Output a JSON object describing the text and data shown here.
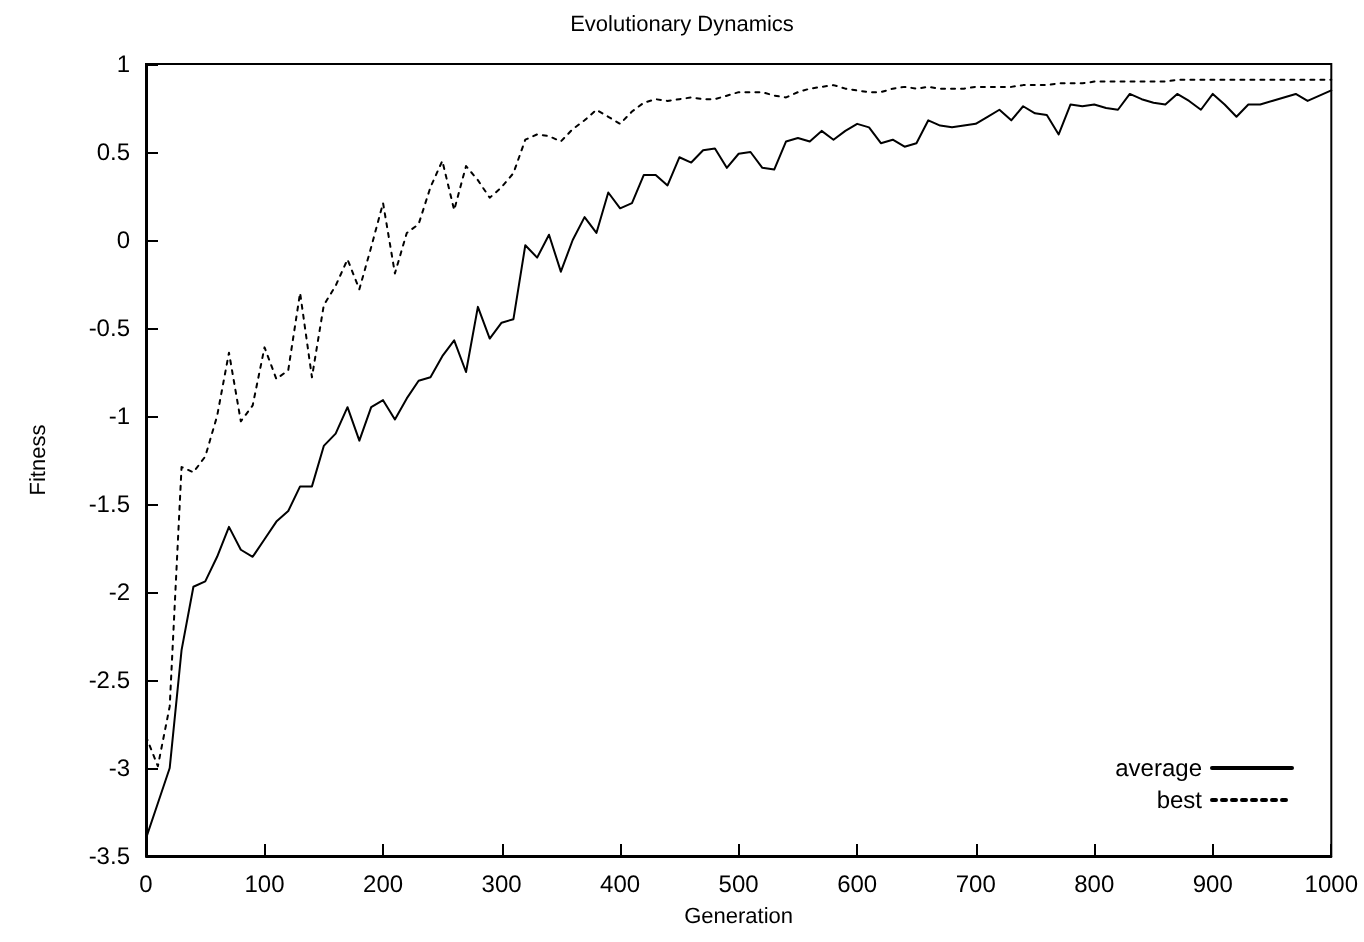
{
  "chart_data": {
    "type": "line",
    "title": "Evolutionary Dynamics",
    "xlabel": "Generation",
    "ylabel": "Fitness",
    "x": [
      0,
      10,
      20,
      30,
      40,
      50,
      60,
      70,
      80,
      90,
      100,
      110,
      120,
      130,
      140,
      150,
      160,
      170,
      180,
      190,
      200,
      210,
      220,
      230,
      240,
      250,
      260,
      270,
      280,
      290,
      300,
      310,
      320,
      330,
      340,
      350,
      360,
      370,
      380,
      390,
      400,
      410,
      420,
      430,
      440,
      450,
      460,
      470,
      480,
      490,
      500,
      510,
      520,
      530,
      540,
      550,
      560,
      570,
      580,
      590,
      600,
      610,
      620,
      630,
      640,
      650,
      660,
      670,
      680,
      690,
      700,
      710,
      720,
      730,
      740,
      750,
      760,
      770,
      780,
      790,
      800,
      810,
      820,
      830,
      840,
      850,
      860,
      870,
      880,
      890,
      900,
      910,
      920,
      930,
      940,
      950,
      960,
      970,
      980,
      990,
      1000
    ],
    "series": [
      {
        "name": "average",
        "color": "#000000",
        "line_style": "solid",
        "values": [
          -3.4,
          -3.2,
          -3.0,
          -2.33,
          -1.97,
          -1.94,
          -1.8,
          -1.63,
          -1.76,
          -1.8,
          -1.7,
          -1.6,
          -1.54,
          -1.4,
          -1.4,
          -1.17,
          -1.1,
          -0.95,
          -1.14,
          -0.95,
          -0.91,
          -1.02,
          -0.9,
          -0.8,
          -0.78,
          -0.66,
          -0.57,
          -0.75,
          -0.38,
          -0.56,
          -0.47,
          -0.45,
          -0.03,
          -0.1,
          0.03,
          -0.18,
          0.0,
          0.13,
          0.04,
          0.27,
          0.18,
          0.21,
          0.37,
          0.37,
          0.31,
          0.47,
          0.44,
          0.51,
          0.52,
          0.41,
          0.49,
          0.5,
          0.41,
          0.4,
          0.56,
          0.58,
          0.56,
          0.62,
          0.57,
          0.62,
          0.66,
          0.64,
          0.55,
          0.57,
          0.53,
          0.55,
          0.68,
          0.65,
          0.64,
          0.65,
          0.66,
          0.7,
          0.74,
          0.68,
          0.76,
          0.72,
          0.71,
          0.6,
          0.77,
          0.76,
          0.77,
          0.75,
          0.74,
          0.83,
          0.8,
          0.78,
          0.77,
          0.83,
          0.79,
          0.74,
          0.83,
          0.77,
          0.7,
          0.77,
          0.77,
          0.79,
          0.81,
          0.83,
          0.79,
          0.82,
          0.85
        ]
      },
      {
        "name": "best",
        "color": "#000000",
        "line_style": "dotted",
        "values": [
          -2.82,
          -2.99,
          -2.65,
          -1.29,
          -1.32,
          -1.23,
          -1.0,
          -0.64,
          -1.03,
          -0.94,
          -0.61,
          -0.79,
          -0.74,
          -0.3,
          -0.78,
          -0.37,
          -0.26,
          -0.11,
          -0.28,
          -0.04,
          0.21,
          -0.19,
          0.04,
          0.09,
          0.3,
          0.45,
          0.17,
          0.42,
          0.34,
          0.24,
          0.3,
          0.38,
          0.57,
          0.6,
          0.59,
          0.56,
          0.63,
          0.68,
          0.74,
          0.7,
          0.66,
          0.73,
          0.78,
          0.8,
          0.79,
          0.8,
          0.81,
          0.8,
          0.8,
          0.82,
          0.84,
          0.84,
          0.84,
          0.82,
          0.81,
          0.84,
          0.86,
          0.87,
          0.88,
          0.86,
          0.85,
          0.84,
          0.84,
          0.86,
          0.87,
          0.86,
          0.87,
          0.86,
          0.86,
          0.86,
          0.87,
          0.87,
          0.87,
          0.87,
          0.88,
          0.88,
          0.88,
          0.89,
          0.89,
          0.89,
          0.9,
          0.9,
          0.9,
          0.9,
          0.9,
          0.9,
          0.9,
          0.91,
          0.91,
          0.91,
          0.91,
          0.91,
          0.91,
          0.91,
          0.91,
          0.91,
          0.91,
          0.91,
          0.91,
          0.91,
          0.91
        ]
      }
    ],
    "xlim": [
      0,
      1000
    ],
    "xticks": [
      0,
      100,
      200,
      300,
      400,
      500,
      600,
      700,
      800,
      900,
      1000
    ],
    "ylim": [
      -3.5,
      1
    ],
    "yticks": [
      -3.5,
      -3,
      -2.5,
      -2,
      -1.5,
      -1,
      -0.5,
      0,
      0.5,
      1
    ],
    "grid": false,
    "legend": "bottom right",
    "marker": "none"
  }
}
